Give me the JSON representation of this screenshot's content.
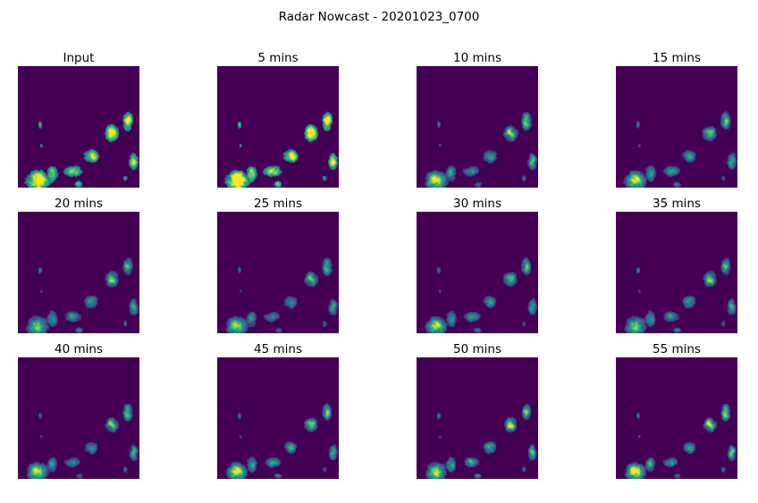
{
  "figure": {
    "title": "Radar Nowcast - 20201023_0700",
    "colormap": "viridis",
    "background_color": "#440154"
  },
  "panels": [
    {
      "title": "Input",
      "intensity": 0.78
    },
    {
      "title": "5 mins",
      "intensity": 0.93
    },
    {
      "title": "10 mins",
      "intensity": 0.72
    },
    {
      "title": "15 mins",
      "intensity": 0.64
    },
    {
      "title": "20 mins",
      "intensity": 0.6
    },
    {
      "title": "25 mins",
      "intensity": 0.6
    },
    {
      "title": "30 mins",
      "intensity": 0.6
    },
    {
      "title": "35 mins",
      "intensity": 0.61
    },
    {
      "title": "40 mins",
      "intensity": 0.66
    },
    {
      "title": "45 mins",
      "intensity": 0.68
    },
    {
      "title": "50 mins",
      "intensity": 0.72
    },
    {
      "title": "55 mins",
      "intensity": 0.8
    }
  ]
}
